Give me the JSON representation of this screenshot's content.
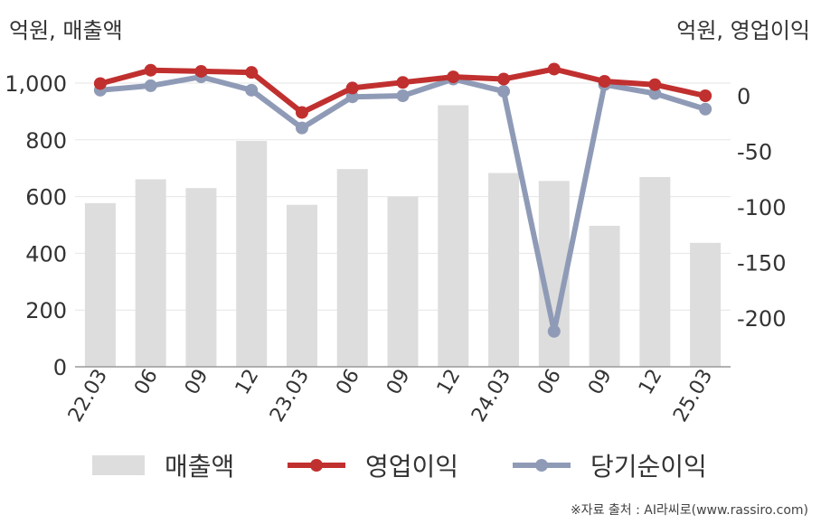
{
  "units": {
    "left": "억원, 매출액",
    "right": "억원, 영업이익"
  },
  "legend": {
    "sales": "매출액",
    "op_income": "영업이익",
    "net_income": "당기순이익"
  },
  "source": "※자료 출처 : AI라씨로(www.rassiro.com)",
  "colors": {
    "sales": "#dddddd",
    "op_income": "#c0302f",
    "net_income": "#8f9bb6",
    "grid": "#e6e6e6",
    "axis": "#999999"
  },
  "chart_data": {
    "type": "bar",
    "categories": [
      "22.03",
      "06",
      "09",
      "12",
      "23.03",
      "06",
      "09",
      "12",
      "24.03",
      "06",
      "09",
      "12",
      "25.03"
    ],
    "left_axis": {
      "ylim": [
        0,
        1000
      ],
      "ticks": [
        0,
        200,
        400,
        600,
        800,
        1000
      ],
      "tick_labels": [
        "0",
        "200",
        "400",
        "600",
        "800",
        "1,000"
      ]
    },
    "right_axis": {
      "ylim": [
        -245,
        25
      ],
      "ticks": [
        0,
        -50,
        -100,
        -150,
        -200
      ],
      "tick_labels": [
        "0",
        "-50",
        "-100",
        "-150",
        "-200"
      ]
    },
    "series": [
      {
        "name": "매출액",
        "type": "bar",
        "axis": "left",
        "values": [
          577,
          661,
          630,
          796,
          571,
          697,
          600,
          922,
          683,
          655,
          497,
          669,
          437
        ]
      },
      {
        "name": "영업이익",
        "type": "line",
        "axis": "right",
        "values": [
          11,
          23,
          22,
          21,
          -15,
          7,
          12,
          17,
          15,
          24,
          13,
          10,
          0
        ]
      },
      {
        "name": "당기순이익",
        "type": "line",
        "axis": "right",
        "values": [
          5,
          9,
          17,
          5,
          -29,
          -1,
          0,
          15,
          4,
          -212,
          10,
          2,
          -12
        ]
      }
    ],
    "grid": true,
    "legend_position": "bottom"
  }
}
